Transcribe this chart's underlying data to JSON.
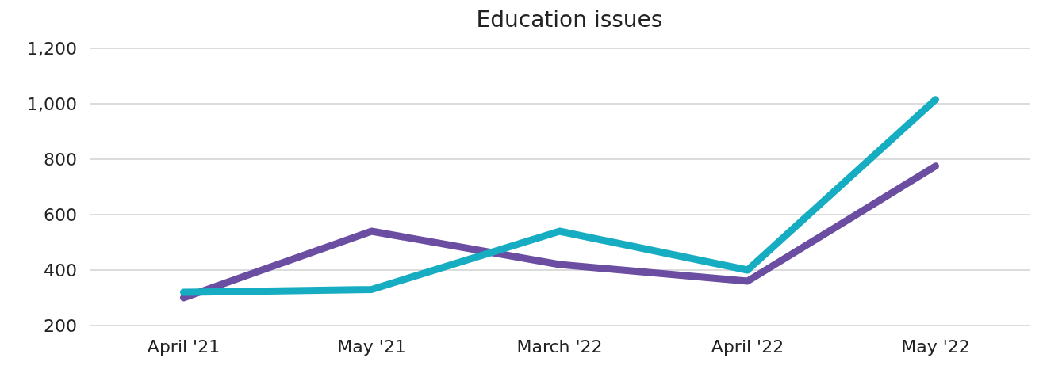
{
  "chart_data": {
    "type": "line",
    "title": "Education issues",
    "categories": [
      "April '21",
      "May '21",
      "March '22",
      "April '22",
      "May '22"
    ],
    "series": [
      {
        "color": "#6b4ea2",
        "values": [
          300,
          540,
          420,
          360,
          775
        ]
      },
      {
        "color": "#16acc1",
        "values": [
          320,
          330,
          540,
          400,
          1015
        ]
      }
    ],
    "ylim": [
      200,
      1200
    ],
    "yticks": [
      200,
      400,
      600,
      800,
      {
        "value": 1000,
        "label": "1,000"
      },
      {
        "value": 1200,
        "label": "1,200"
      }
    ],
    "grid": "y",
    "marker": "none",
    "line_style": "solid"
  }
}
